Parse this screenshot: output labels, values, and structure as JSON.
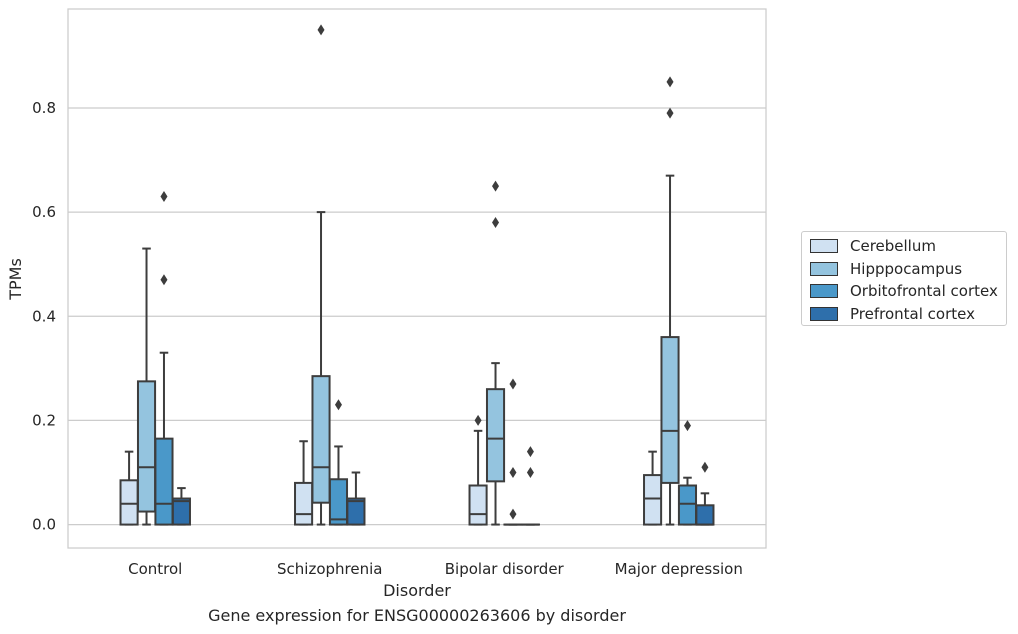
{
  "chart_data": {
    "type": "boxplot",
    "title": "Gene expression for ENSG00000263606 by disorder",
    "xlabel": "Disorder",
    "ylabel": "TPMs",
    "ylim": [
      -0.045,
      0.99
    ],
    "yticks": [
      0.0,
      0.2,
      0.4,
      0.6,
      0.8
    ],
    "ytick_labels": [
      "0.0",
      "0.2",
      "0.4",
      "0.6",
      "0.8"
    ],
    "grid": true,
    "legend_position": "right",
    "categories": [
      "Control",
      "Schizophrenia",
      "Bipolar disorder",
      "Major depression"
    ],
    "series": [
      {
        "name": "Cerebellum",
        "color": "#d0e1f2",
        "boxes": [
          {
            "whislo": 0.0,
            "q1": 0.0,
            "med": 0.04,
            "q3": 0.085,
            "whishi": 0.14,
            "fliers": []
          },
          {
            "whislo": 0.0,
            "q1": 0.0,
            "med": 0.02,
            "q3": 0.08,
            "whishi": 0.16,
            "fliers": []
          },
          {
            "whislo": 0.0,
            "q1": 0.0,
            "med": 0.02,
            "q3": 0.075,
            "whishi": 0.18,
            "fliers": [
              0.2
            ]
          },
          {
            "whislo": 0.0,
            "q1": 0.0,
            "med": 0.05,
            "q3": 0.095,
            "whishi": 0.14,
            "fliers": []
          }
        ]
      },
      {
        "name": "Hipppocampus",
        "color": "#94c4df",
        "boxes": [
          {
            "whislo": 0.0,
            "q1": 0.025,
            "med": 0.11,
            "q3": 0.275,
            "whishi": 0.53,
            "fliers": []
          },
          {
            "whislo": 0.0,
            "q1": 0.042,
            "med": 0.11,
            "q3": 0.285,
            "whishi": 0.6,
            "fliers": [
              0.95
            ]
          },
          {
            "whislo": 0.0,
            "q1": 0.083,
            "med": 0.165,
            "q3": 0.26,
            "whishi": 0.31,
            "fliers": [
              0.58,
              0.65
            ]
          },
          {
            "whislo": 0.0,
            "q1": 0.08,
            "med": 0.18,
            "q3": 0.36,
            "whishi": 0.67,
            "fliers": [
              0.79,
              0.85
            ]
          }
        ]
      },
      {
        "name": "Orbitofrontal cortex",
        "color": "#4a98c9",
        "boxes": [
          {
            "whislo": 0.0,
            "q1": 0.0,
            "med": 0.04,
            "q3": 0.165,
            "whishi": 0.33,
            "fliers": [
              0.47,
              0.63
            ]
          },
          {
            "whislo": 0.0,
            "q1": 0.0,
            "med": 0.01,
            "q3": 0.087,
            "whishi": 0.15,
            "fliers": [
              0.23
            ]
          },
          {
            "whislo": 0.0,
            "q1": 0.0,
            "med": 0.0,
            "q3": 0.0,
            "whishi": 0.0,
            "fliers": [
              0.02,
              0.1,
              0.27
            ]
          },
          {
            "whislo": 0.0,
            "q1": 0.0,
            "med": 0.04,
            "q3": 0.075,
            "whishi": 0.09,
            "fliers": [
              0.19
            ]
          }
        ]
      },
      {
        "name": "Prefrontal cortex",
        "color": "#2e6fab",
        "boxes": [
          {
            "whislo": 0.0,
            "q1": 0.0,
            "med": 0.045,
            "q3": 0.05,
            "whishi": 0.07,
            "fliers": []
          },
          {
            "whislo": 0.0,
            "q1": 0.0,
            "med": 0.045,
            "q3": 0.05,
            "whishi": 0.1,
            "fliers": []
          },
          {
            "whislo": 0.0,
            "q1": 0.0,
            "med": 0.0,
            "q3": 0.0,
            "whishi": 0.0,
            "fliers": [
              0.1,
              0.14
            ]
          },
          {
            "whislo": 0.0,
            "q1": 0.0,
            "med": 0.0,
            "q3": 0.037,
            "whishi": 0.06,
            "fliers": [
              0.11
            ]
          }
        ]
      }
    ]
  }
}
